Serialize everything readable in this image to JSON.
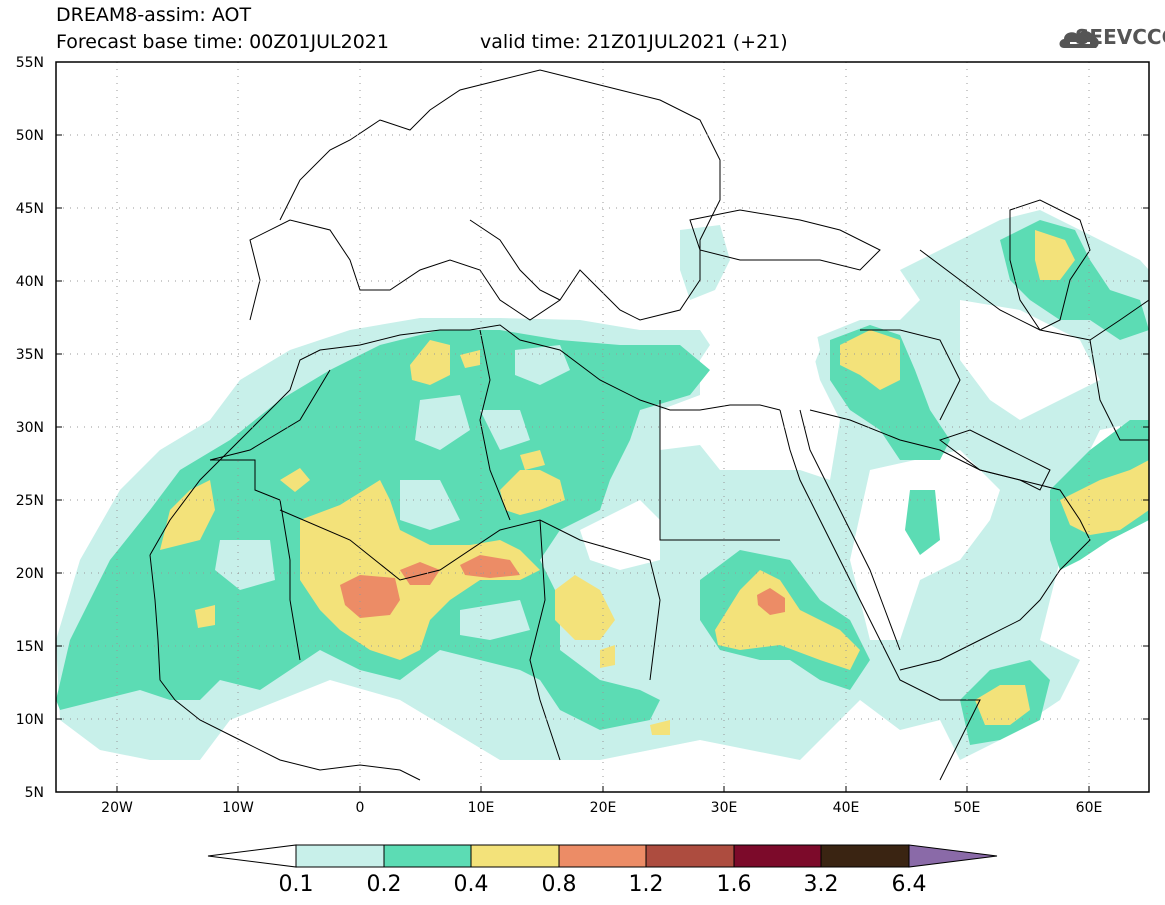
{
  "header": {
    "title_line1": "DREAM8-assim: AOT",
    "title_line2": "Forecast base time: 00Z01JUL2021",
    "valid_time": "valid time: 21Z01JUL2021 (+21)",
    "logo_text": "SEEVCCC"
  },
  "axes": {
    "lat_labels": [
      "55N",
      "50N",
      "45N",
      "40N",
      "35N",
      "30N",
      "25N",
      "20N",
      "15N",
      "10N",
      "5N"
    ],
    "lon_labels": [
      "20W",
      "10W",
      "0",
      "10E",
      "20E",
      "30E",
      "40E",
      "50E",
      "60E"
    ]
  },
  "colorbar": {
    "labels": [
      "0.1",
      "0.2",
      "0.4",
      "0.8",
      "1.2",
      "1.6",
      "3.2",
      "6.4"
    ],
    "colors": [
      "#ffffff",
      "#c8f0ea",
      "#5cdcb4",
      "#f3e27a",
      "#ec8c66",
      "#ad4c3f",
      "#7c0a2a",
      "#3a2412",
      "#8a6aa8"
    ]
  },
  "map_colors": {
    "level_0_1": "#c8f0ea",
    "level_0_2": "#5cdcb4",
    "level_0_4": "#f3e27a",
    "level_0_8": "#ec8c66",
    "border": "#000000"
  }
}
